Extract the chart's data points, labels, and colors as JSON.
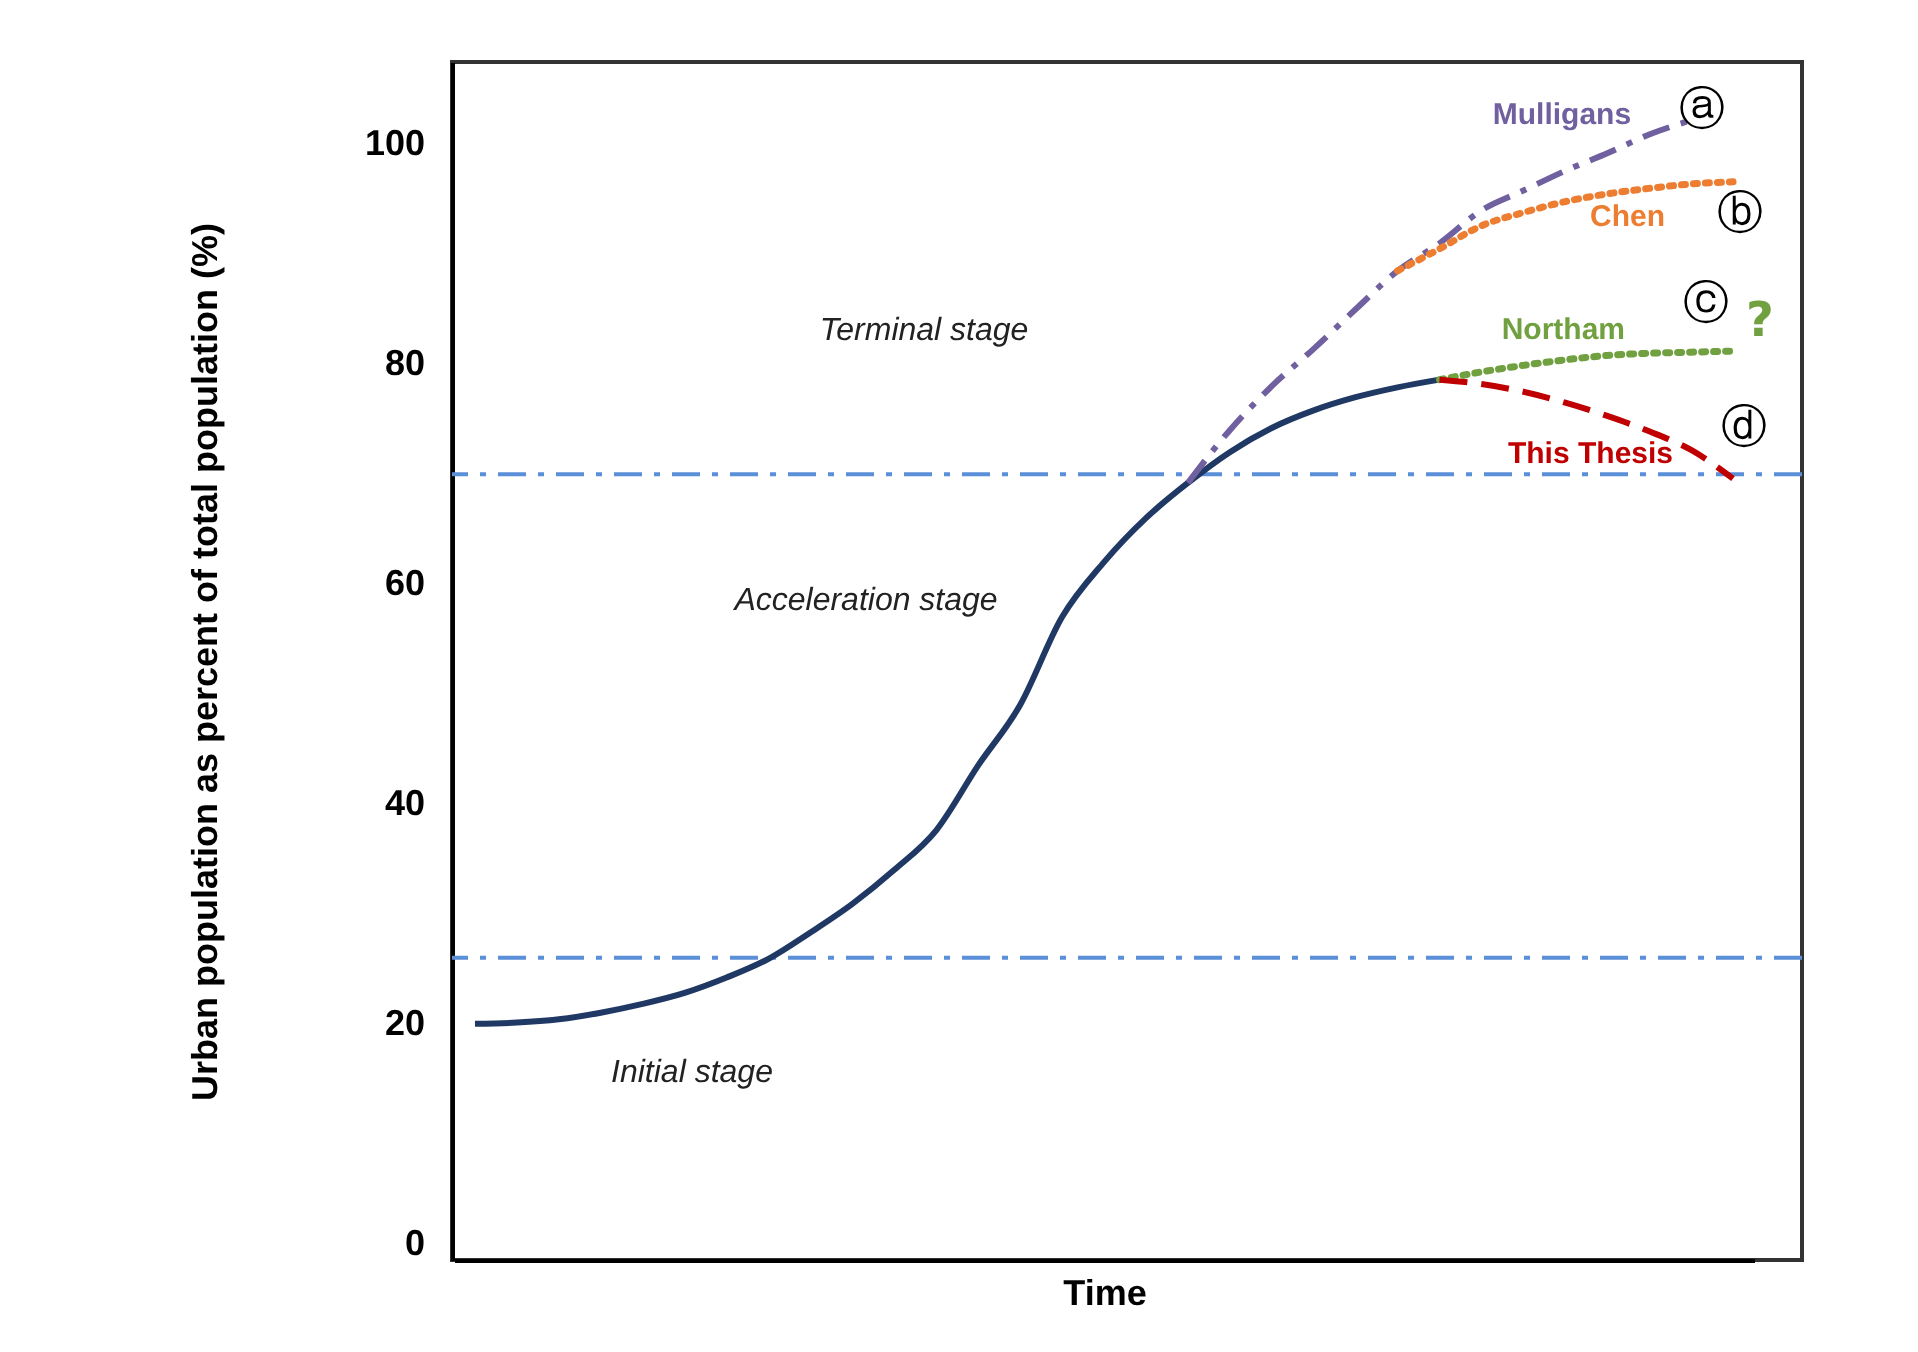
{
  "chart_data": {
    "type": "line",
    "xlabel": "Time",
    "ylabel": "Urban population as percent of total population (%)",
    "categories": [
      null,
      null,
      null,
      null,
      null,
      null,
      null,
      null,
      null,
      null,
      null,
      null,
      null,
      null,
      null,
      null,
      null,
      null,
      null,
      null,
      null,
      null,
      null,
      null,
      null,
      null,
      null,
      null,
      null,
      null,
      null
    ],
    "series": [
      {
        "color": "#1f3864",
        "line_style": "solid",
        "values": [
          20,
          20.1,
          20.4,
          21,
          21.8,
          22.8,
          24.2,
          25.9,
          28.3,
          30.9,
          34,
          37.6,
          43.5,
          49,
          57,
          62,
          66,
          69.2,
          72,
          74.2,
          75.8,
          77,
          77.9,
          78.6,
          null,
          null,
          null,
          null,
          null,
          null,
          null
        ]
      },
      {
        "name": "Mulligans",
        "color": "#7060a0",
        "line_style": "dashdot",
        "values": [
          null,
          null,
          null,
          null,
          null,
          null,
          null,
          null,
          null,
          null,
          null,
          null,
          null,
          null,
          null,
          null,
          null,
          69.2,
          74,
          78,
          81.4,
          85,
          88.5,
          91,
          94,
          95.8,
          97.6,
          99.2,
          100.9,
          102.2,
          null
        ]
      },
      {
        "name": "Chen",
        "color": "#ed7d31",
        "line_style": "dotted",
        "values": [
          null,
          null,
          null,
          null,
          null,
          null,
          null,
          null,
          null,
          null,
          null,
          null,
          null,
          null,
          null,
          null,
          null,
          null,
          null,
          null,
          null,
          null,
          88.5,
          90.5,
          92.6,
          93.8,
          94.8,
          95.5,
          96,
          96.4,
          96.6
        ]
      },
      {
        "name": "Northam",
        "color": "#70a040",
        "line_style": "dotted",
        "values": [
          null,
          null,
          null,
          null,
          null,
          null,
          null,
          null,
          null,
          null,
          null,
          null,
          null,
          null,
          null,
          null,
          null,
          null,
          null,
          null,
          null,
          null,
          null,
          78.6,
          79.3,
          79.9,
          80.4,
          80.8,
          81,
          81.1,
          81.2
        ]
      },
      {
        "name": "This Thesis",
        "color": "#c00000",
        "line_style": "dashed",
        "values": [
          null,
          null,
          null,
          null,
          null,
          null,
          null,
          null,
          null,
          null,
          null,
          null,
          null,
          null,
          null,
          null,
          null,
          null,
          null,
          null,
          null,
          null,
          null,
          78.6,
          78.2,
          77.5,
          76.5,
          75.3,
          73.9,
          72.2,
          69.6
        ]
      }
    ],
    "ref_lines": [
      {
        "axis": "y",
        "value": 26,
        "color": "#5b8fd8",
        "line_style": "dashdot"
      },
      {
        "axis": "y",
        "value": 70,
        "color": "#5b8fd8",
        "line_style": "dashdot"
      }
    ],
    "annotations": [
      "Terminal stage",
      "Acceleration stage",
      "Initial stage",
      "ⓐ",
      "ⓑ",
      "ⓒ",
      "ⓓ",
      "?"
    ],
    "ylim": [
      -1.5,
      107.5
    ],
    "yticks": [
      0,
      20,
      40,
      60,
      80,
      100
    ],
    "tick_labels": "y"
  }
}
